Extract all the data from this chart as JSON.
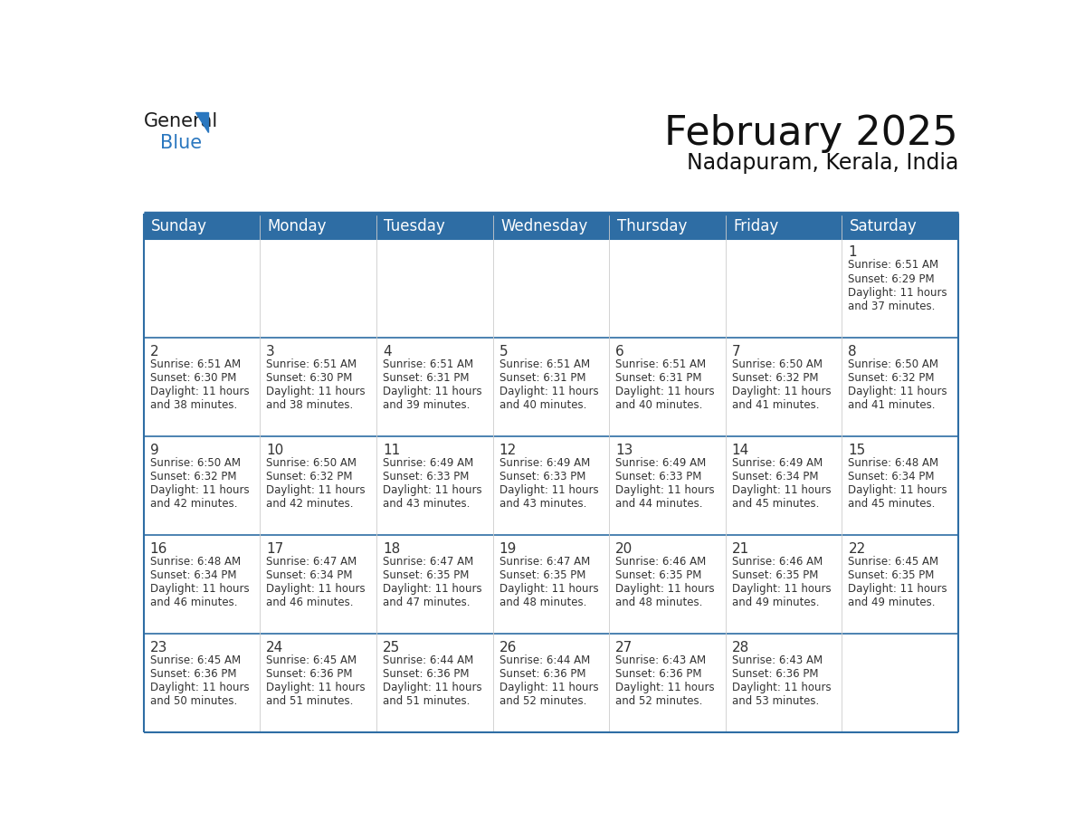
{
  "title": "February 2025",
  "subtitle": "Nadapuram, Kerala, India",
  "header_bg": "#2E6DA4",
  "header_text": "#FFFFFF",
  "cell_bg": "#FFFFFF",
  "last_row_bg": "#F0F0F0",
  "border_color": "#2E6DA4",
  "row_line_color": "#2E6DA4",
  "col_line_color": "#CCCCCC",
  "text_color": "#333333",
  "day_names": [
    "Sunday",
    "Monday",
    "Tuesday",
    "Wednesday",
    "Thursday",
    "Friday",
    "Saturday"
  ],
  "days": [
    {
      "day": 1,
      "col": 6,
      "row": 0,
      "sunrise": "6:51 AM",
      "sunset": "6:29 PM",
      "daylight_minutes": "37"
    },
    {
      "day": 2,
      "col": 0,
      "row": 1,
      "sunrise": "6:51 AM",
      "sunset": "6:30 PM",
      "daylight_minutes": "38"
    },
    {
      "day": 3,
      "col": 1,
      "row": 1,
      "sunrise": "6:51 AM",
      "sunset": "6:30 PM",
      "daylight_minutes": "38"
    },
    {
      "day": 4,
      "col": 2,
      "row": 1,
      "sunrise": "6:51 AM",
      "sunset": "6:31 PM",
      "daylight_minutes": "39"
    },
    {
      "day": 5,
      "col": 3,
      "row": 1,
      "sunrise": "6:51 AM",
      "sunset": "6:31 PM",
      "daylight_minutes": "40"
    },
    {
      "day": 6,
      "col": 4,
      "row": 1,
      "sunrise": "6:51 AM",
      "sunset": "6:31 PM",
      "daylight_minutes": "40"
    },
    {
      "day": 7,
      "col": 5,
      "row": 1,
      "sunrise": "6:50 AM",
      "sunset": "6:32 PM",
      "daylight_minutes": "41"
    },
    {
      "day": 8,
      "col": 6,
      "row": 1,
      "sunrise": "6:50 AM",
      "sunset": "6:32 PM",
      "daylight_minutes": "41"
    },
    {
      "day": 9,
      "col": 0,
      "row": 2,
      "sunrise": "6:50 AM",
      "sunset": "6:32 PM",
      "daylight_minutes": "42"
    },
    {
      "day": 10,
      "col": 1,
      "row": 2,
      "sunrise": "6:50 AM",
      "sunset": "6:32 PM",
      "daylight_minutes": "42"
    },
    {
      "day": 11,
      "col": 2,
      "row": 2,
      "sunrise": "6:49 AM",
      "sunset": "6:33 PM",
      "daylight_minutes": "43"
    },
    {
      "day": 12,
      "col": 3,
      "row": 2,
      "sunrise": "6:49 AM",
      "sunset": "6:33 PM",
      "daylight_minutes": "43"
    },
    {
      "day": 13,
      "col": 4,
      "row": 2,
      "sunrise": "6:49 AM",
      "sunset": "6:33 PM",
      "daylight_minutes": "44"
    },
    {
      "day": 14,
      "col": 5,
      "row": 2,
      "sunrise": "6:49 AM",
      "sunset": "6:34 PM",
      "daylight_minutes": "45"
    },
    {
      "day": 15,
      "col": 6,
      "row": 2,
      "sunrise": "6:48 AM",
      "sunset": "6:34 PM",
      "daylight_minutes": "45"
    },
    {
      "day": 16,
      "col": 0,
      "row": 3,
      "sunrise": "6:48 AM",
      "sunset": "6:34 PM",
      "daylight_minutes": "46"
    },
    {
      "day": 17,
      "col": 1,
      "row": 3,
      "sunrise": "6:47 AM",
      "sunset": "6:34 PM",
      "daylight_minutes": "46"
    },
    {
      "day": 18,
      "col": 2,
      "row": 3,
      "sunrise": "6:47 AM",
      "sunset": "6:35 PM",
      "daylight_minutes": "47"
    },
    {
      "day": 19,
      "col": 3,
      "row": 3,
      "sunrise": "6:47 AM",
      "sunset": "6:35 PM",
      "daylight_minutes": "48"
    },
    {
      "day": 20,
      "col": 4,
      "row": 3,
      "sunrise": "6:46 AM",
      "sunset": "6:35 PM",
      "daylight_minutes": "48"
    },
    {
      "day": 21,
      "col": 5,
      "row": 3,
      "sunrise": "6:46 AM",
      "sunset": "6:35 PM",
      "daylight_minutes": "49"
    },
    {
      "day": 22,
      "col": 6,
      "row": 3,
      "sunrise": "6:45 AM",
      "sunset": "6:35 PM",
      "daylight_minutes": "49"
    },
    {
      "day": 23,
      "col": 0,
      "row": 4,
      "sunrise": "6:45 AM",
      "sunset": "6:36 PM",
      "daylight_minutes": "50"
    },
    {
      "day": 24,
      "col": 1,
      "row": 4,
      "sunrise": "6:45 AM",
      "sunset": "6:36 PM",
      "daylight_minutes": "51"
    },
    {
      "day": 25,
      "col": 2,
      "row": 4,
      "sunrise": "6:44 AM",
      "sunset": "6:36 PM",
      "daylight_minutes": "51"
    },
    {
      "day": 26,
      "col": 3,
      "row": 4,
      "sunrise": "6:44 AM",
      "sunset": "6:36 PM",
      "daylight_minutes": "52"
    },
    {
      "day": 27,
      "col": 4,
      "row": 4,
      "sunrise": "6:43 AM",
      "sunset": "6:36 PM",
      "daylight_minutes": "52"
    },
    {
      "day": 28,
      "col": 5,
      "row": 4,
      "sunrise": "6:43 AM",
      "sunset": "6:36 PM",
      "daylight_minutes": "53"
    }
  ],
  "num_rows": 5,
  "logo_general_color": "#1a1a1a",
  "logo_blue_color": "#2A77BF",
  "logo_triangle_color": "#2A77BF",
  "title_fontsize": 32,
  "subtitle_fontsize": 17,
  "header_fontsize": 12,
  "day_num_fontsize": 11,
  "cell_text_fontsize": 8.5
}
